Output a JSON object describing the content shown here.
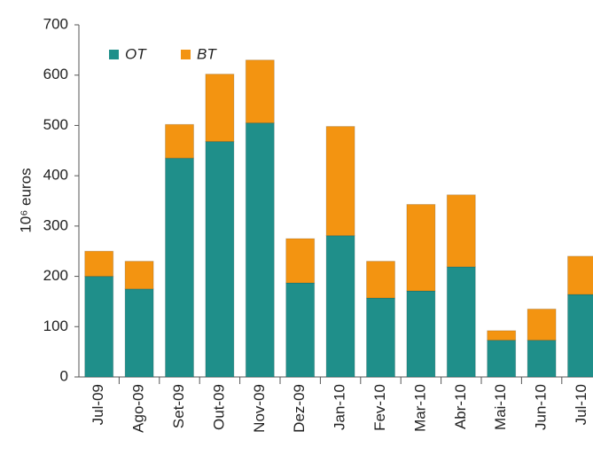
{
  "chart_data": {
    "type": "stacked_bar",
    "y_label": "10⁶ euros",
    "categories": [
      "Jul-09",
      "Ago-09",
      "Set-09",
      "Out-09",
      "Nov-09",
      "Dez-09",
      "Jan-10",
      "Fev-10",
      "Mar-10",
      "Abr-10",
      "Mai-10",
      "Jun-10",
      "Jul-10"
    ],
    "series": [
      {
        "name": "OT",
        "color": "#1f8f8a",
        "values": [
          200,
          175,
          435,
          468,
          505,
          187,
          281,
          157,
          171,
          219,
          73,
          73,
          164
        ]
      },
      {
        "name": "BT",
        "color": "#f39411",
        "values": [
          50,
          55,
          67,
          134,
          125,
          88,
          217,
          73,
          172,
          143,
          19,
          62,
          76
        ]
      }
    ],
    "ylim": [
      0,
      700
    ],
    "yticks": [
      0,
      100,
      200,
      300,
      400,
      500,
      600,
      700
    ],
    "legend": "top-left"
  }
}
